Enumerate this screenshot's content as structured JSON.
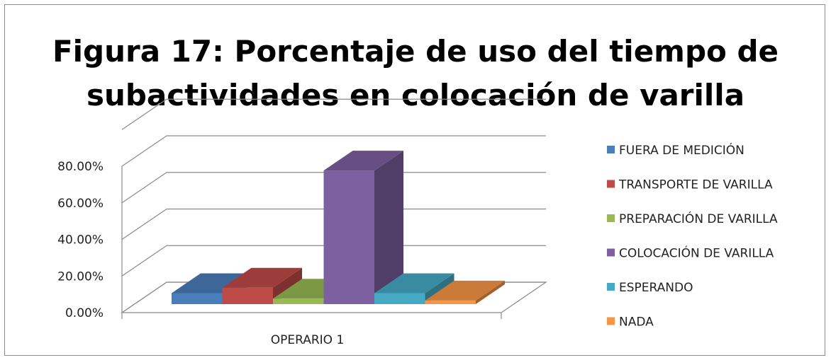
{
  "chart_data": {
    "type": "bar",
    "title_lines": [
      "Figura 17: Porcentaje de uso del tiempo de",
      "subactividades en colocación de varilla"
    ],
    "categories": [
      "OPERARIO 1"
    ],
    "series": [
      {
        "name": "FUERA DE MEDICIÓN",
        "values": [
          0.06
        ],
        "color": "#4a7ebb"
      },
      {
        "name": "TRANSPORTE DE VARILLA",
        "values": [
          0.09
        ],
        "color": "#be4b48"
      },
      {
        "name": "PREPARACIÓN DE VARILLA",
        "values": [
          0.03
        ],
        "color": "#98b954"
      },
      {
        "name": "COLOCACIÓN DE VARILLA",
        "values": [
          0.73
        ],
        "color": "#7d60a0"
      },
      {
        "name": "ESPERANDO",
        "values": [
          0.06
        ],
        "color": "#46aac5"
      },
      {
        "name": "NADA",
        "values": [
          0.02
        ],
        "color": "#f69545"
      }
    ],
    "y_ticks": [
      "0.00%",
      "20.00%",
      "40.00%",
      "60.00%",
      "80.00%"
    ],
    "ylim": [
      0,
      1
    ],
    "grid": true,
    "legend_position": "right",
    "is_3d": true
  }
}
